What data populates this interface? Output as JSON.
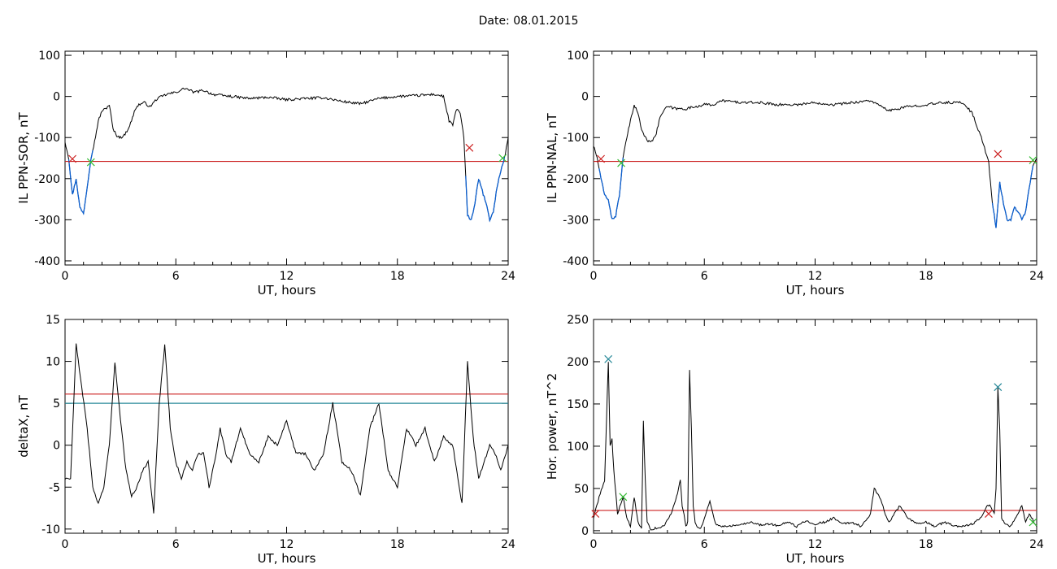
{
  "header": {
    "date_title": "Date:  08.01.2015"
  },
  "colors": {
    "threshold": "#cc2222",
    "threshold2": "#2a8a9a",
    "segment": "#0b5fd0",
    "line": "#000000",
    "marker_start": "#cc2222",
    "marker_end": "#33bb33",
    "marker_peak": "#2a8a9a"
  },
  "chart_data": [
    {
      "type": "line",
      "id": "il-sor",
      "xlabel": "UT, hours",
      "ylabel": "IL PPN-SOR, nT",
      "xlim": [
        0,
        24
      ],
      "ylim": [
        -410,
        110
      ],
      "xticks": [
        0,
        6,
        12,
        18,
        24
      ],
      "yticks": [
        100,
        0,
        -100,
        -200,
        -300,
        -400
      ],
      "threshold": -158,
      "series": [
        {
          "x": [
            0,
            0.2,
            0.4,
            0.6,
            0.8,
            1.0,
            1.2,
            1.4,
            1.6,
            1.8,
            2.0,
            2.2,
            2.4,
            2.6,
            2.8,
            3.0,
            3.2,
            3.4,
            3.6,
            3.8,
            4.0,
            4.3,
            4.6,
            5.0,
            5.5,
            6.0,
            6.5,
            7.0,
            7.5,
            8.0,
            9.0,
            10,
            11,
            12,
            13,
            14,
            15,
            16,
            17,
            18,
            19,
            20,
            20.5,
            20.8,
            21.0,
            21.2,
            21.4,
            21.6,
            21.8,
            22.0,
            22.2,
            22.4,
            22.6,
            22.8,
            23.0,
            23.2,
            23.4,
            23.6,
            23.8,
            24.0
          ],
          "y": [
            -110,
            -150,
            -240,
            -200,
            -270,
            -285,
            -220,
            -150,
            -110,
            -60,
            -35,
            -30,
            -20,
            -80,
            -95,
            -100,
            -95,
            -80,
            -60,
            -30,
            -20,
            -15,
            -25,
            -5,
            5,
            10,
            20,
            10,
            15,
            5,
            0,
            -5,
            -2,
            -8,
            -5,
            -3,
            -12,
            -18,
            -5,
            0,
            2,
            5,
            0,
            -60,
            -70,
            -30,
            -40,
            -100,
            -290,
            -300,
            -260,
            -200,
            -230,
            -260,
            -300,
            -280,
            -220,
            -180,
            -150,
            -100
          ],
          "segments": [
            [
              0.2,
              1.5
            ],
            [
              21.7,
              23.8
            ]
          ]
        }
      ],
      "markers": [
        {
          "x": 0.4,
          "y": -152,
          "color": "#cc2222"
        },
        {
          "x": 1.4,
          "y": -160,
          "color": "#33bb33"
        },
        {
          "x": 21.9,
          "y": -125,
          "color": "#cc2222"
        },
        {
          "x": 23.7,
          "y": -150,
          "color": "#33bb33"
        }
      ]
    },
    {
      "type": "line",
      "id": "il-nal",
      "xlabel": "UT, hours",
      "ylabel": "IL PPN-NAL, nT",
      "xlim": [
        0,
        24
      ],
      "ylim": [
        -410,
        110
      ],
      "xticks": [
        0,
        6,
        12,
        18,
        24
      ],
      "yticks": [
        100,
        0,
        -100,
        -200,
        -300,
        -400
      ],
      "threshold": -158,
      "series": [
        {
          "x": [
            0,
            0.2,
            0.4,
            0.6,
            0.8,
            1.0,
            1.2,
            1.4,
            1.6,
            1.8,
            2.0,
            2.2,
            2.4,
            2.6,
            2.8,
            3.0,
            3.2,
            3.4,
            3.6,
            3.8,
            4.0,
            4.5,
            5.0,
            5.5,
            6.0,
            6.5,
            7.0,
            8.0,
            9.0,
            10,
            11,
            12,
            13,
            14,
            15,
            16,
            17,
            18,
            19,
            20,
            20.5,
            21.0,
            21.4,
            21.6,
            21.8,
            22.0,
            22.2,
            22.4,
            22.6,
            22.8,
            23.0,
            23.2,
            23.4,
            23.6,
            23.8,
            24.0
          ],
          "y": [
            -120,
            -150,
            -200,
            -240,
            -250,
            -300,
            -290,
            -240,
            -150,
            -100,
            -60,
            -20,
            -40,
            -80,
            -100,
            -110,
            -105,
            -90,
            -50,
            -35,
            -25,
            -30,
            -30,
            -25,
            -20,
            -20,
            -10,
            -15,
            -15,
            -20,
            -20,
            -15,
            -20,
            -15,
            -10,
            -35,
            -25,
            -20,
            -15,
            -15,
            -40,
            -100,
            -160,
            -260,
            -320,
            -210,
            -260,
            -300,
            -300,
            -270,
            -280,
            -300,
            -280,
            -220,
            -170,
            -150
          ],
          "segments": [
            [
              0.3,
              1.6
            ],
            [
              21.6,
              23.8
            ]
          ]
        }
      ],
      "markers": [
        {
          "x": 0.4,
          "y": -152,
          "color": "#cc2222"
        },
        {
          "x": 1.5,
          "y": -162,
          "color": "#33bb33"
        },
        {
          "x": 21.9,
          "y": -140,
          "color": "#cc2222"
        },
        {
          "x": 23.8,
          "y": -155,
          "color": "#33bb33"
        }
      ]
    },
    {
      "type": "line",
      "id": "deltax",
      "xlabel": "UT, hours",
      "ylabel": "deltaX, nT",
      "xlim": [
        0,
        24
      ],
      "ylim": [
        -10.5,
        15
      ],
      "xticks": [
        0,
        6,
        12,
        18,
        24
      ],
      "yticks": [
        15,
        10,
        5,
        0,
        -5,
        -10
      ],
      "threshold": 6.1,
      "threshold2": 5.0,
      "series": [
        {
          "x": [
            0,
            0.3,
            0.6,
            0.9,
            1.2,
            1.5,
            1.8,
            2.1,
            2.4,
            2.7,
            3.0,
            3.3,
            3.6,
            3.9,
            4.2,
            4.5,
            4.8,
            5.1,
            5.4,
            5.7,
            6.0,
            6.3,
            6.6,
            6.9,
            7.2,
            7.5,
            7.8,
            8.1,
            8.4,
            8.7,
            9.0,
            9.5,
            10,
            10.5,
            11,
            11.5,
            12,
            12.5,
            13,
            13.5,
            14,
            14.5,
            15,
            15.5,
            16,
            16.5,
            17,
            17.5,
            18,
            18.5,
            19,
            19.5,
            20,
            20.5,
            21,
            21.5,
            21.8,
            22.1,
            22.4,
            22.7,
            23.0,
            23.3,
            23.6,
            24.0
          ],
          "y": [
            -4,
            -4,
            12,
            7,
            2,
            -5,
            -7,
            -5,
            0,
            10,
            3,
            -3,
            -6,
            -5,
            -3,
            -2,
            -8,
            5,
            12,
            2,
            -2,
            -4,
            -2,
            -3,
            -1,
            -1,
            -5,
            -2,
            2,
            -1,
            -2,
            2,
            -1,
            -2,
            1,
            0,
            3,
            -1,
            -1,
            -3,
            -1,
            5,
            -2,
            -3,
            -6,
            2,
            5,
            -3,
            -5,
            2,
            0,
            2,
            -2,
            1,
            0,
            -7,
            10,
            1,
            -4,
            -2,
            0,
            -1,
            -3,
            0
          ],
          "segments": []
        }
      ],
      "markers": []
    },
    {
      "type": "line",
      "id": "hor-power",
      "xlabel": "UT, hours",
      "ylabel": "Hor. power, nT^2",
      "xlim": [
        0,
        24
      ],
      "ylim": [
        -3,
        250
      ],
      "xticks": [
        0,
        6,
        12,
        18,
        24
      ],
      "yticks": [
        250,
        200,
        150,
        100,
        50,
        0
      ],
      "threshold": 24,
      "series": [
        {
          "x": [
            0,
            0.3,
            0.6,
            0.8,
            0.9,
            1.0,
            1.1,
            1.3,
            1.6,
            1.8,
            2.0,
            2.2,
            2.4,
            2.6,
            2.7,
            2.8,
            2.9,
            3.1,
            3.4,
            3.8,
            4.2,
            4.5,
            4.7,
            4.8,
            4.9,
            5.0,
            5.1,
            5.2,
            5.3,
            5.4,
            5.5,
            5.6,
            5.8,
            6.0,
            6.3,
            6.6,
            7.0,
            7.5,
            8.0,
            8.5,
            9.0,
            9.5,
            10,
            10.5,
            11,
            11.5,
            12,
            12.5,
            13,
            13.5,
            14,
            14.5,
            15,
            15.2,
            15.5,
            15.8,
            16,
            16.3,
            16.6,
            17,
            17.5,
            18,
            18.5,
            19,
            19.5,
            20,
            20.5,
            21,
            21.3,
            21.5,
            21.7,
            21.8,
            21.9,
            22.0,
            22.1,
            22.3,
            22.6,
            23.0,
            23.2,
            23.4,
            23.6,
            24.0
          ],
          "y": [
            15,
            40,
            60,
            200,
            100,
            110,
            70,
            20,
            40,
            15,
            5,
            40,
            10,
            2,
            130,
            60,
            10,
            2,
            3,
            5,
            20,
            40,
            60,
            30,
            20,
            5,
            10,
            190,
            120,
            30,
            10,
            5,
            2,
            15,
            35,
            8,
            5,
            6,
            8,
            10,
            7,
            8,
            6,
            10,
            5,
            12,
            8,
            10,
            15,
            8,
            10,
            5,
            20,
            50,
            40,
            20,
            10,
            20,
            30,
            15,
            8,
            10,
            5,
            10,
            6,
            5,
            8,
            15,
            30,
            30,
            20,
            50,
            170,
            120,
            15,
            8,
            5,
            20,
            30,
            10,
            20,
            5
          ],
          "segments": []
        }
      ],
      "markers": [
        {
          "x": 0.1,
          "y": 20,
          "color": "#cc2222"
        },
        {
          "x": 0.8,
          "y": 203,
          "color": "#2a8a9a"
        },
        {
          "x": 1.6,
          "y": 40,
          "color": "#33bb33"
        },
        {
          "x": 21.4,
          "y": 20,
          "color": "#cc2222"
        },
        {
          "x": 21.9,
          "y": 170,
          "color": "#2a8a9a"
        },
        {
          "x": 23.8,
          "y": 10,
          "color": "#33bb33"
        }
      ]
    }
  ]
}
